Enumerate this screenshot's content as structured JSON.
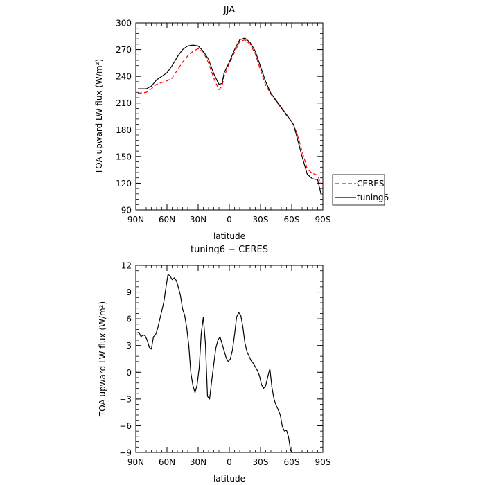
{
  "chart_data": [
    {
      "type": "line",
      "title": "JJA",
      "xlabel": "latitude",
      "ylabel": "TOA upward LW flux (W/m²)",
      "xlim": [
        90,
        -90
      ],
      "ylim": [
        90,
        300
      ],
      "xticks": [
        90,
        60,
        30,
        0,
        -30,
        -60,
        -90
      ],
      "xtick_labels": [
        "90N",
        "60N",
        "30N",
        "0",
        "30S",
        "60S",
        "90S"
      ],
      "yticks": [
        90,
        120,
        150,
        180,
        210,
        240,
        270,
        300
      ],
      "ytick_labels": [
        "90",
        "120",
        "150",
        "180",
        "210",
        "240",
        "270",
        "300"
      ],
      "legend": {
        "placement": "outside-right"
      },
      "series": [
        {
          "name": "CERES",
          "color": "#ff0000",
          "dash": true,
          "x": [
            88,
            80,
            75,
            70,
            65,
            60,
            55,
            50,
            45,
            40,
            35,
            30,
            25,
            20,
            15,
            10,
            7,
            5,
            0,
            -5,
            -10,
            -15,
            -20,
            -25,
            -30,
            -35,
            -40,
            -45,
            -50,
            -55,
            -60,
            -62,
            -65,
            -70,
            -75,
            -80,
            -85,
            -88
          ],
          "y": [
            221,
            222,
            226,
            231,
            233,
            235,
            238,
            247,
            256,
            263,
            268,
            271,
            267,
            255,
            238,
            225,
            229,
            240,
            254,
            267,
            279,
            281,
            276,
            265,
            247,
            230,
            220,
            212,
            204,
            196,
            189,
            185,
            176,
            156,
            136,
            131,
            129,
            119
          ]
        },
        {
          "name": "tuning6",
          "color": "#000000",
          "dash": false,
          "x": [
            88,
            80,
            75,
            70,
            65,
            60,
            55,
            50,
            45,
            40,
            35,
            30,
            25,
            20,
            15,
            10,
            7,
            5,
            0,
            -5,
            -10,
            -15,
            -20,
            -25,
            -30,
            -35,
            -40,
            -45,
            -50,
            -55,
            -60,
            -62,
            -65,
            -70,
            -75,
            -80,
            -85,
            -88
          ],
          "y": [
            226,
            226,
            229,
            236,
            240,
            244,
            252,
            262,
            270,
            274,
            275,
            274,
            268,
            259,
            243,
            231,
            232,
            244,
            256,
            270,
            281,
            283,
            278,
            268,
            251,
            234,
            221,
            213,
            205,
            197,
            189,
            185,
            172,
            150,
            130,
            125,
            124,
            109
          ]
        }
      ]
    },
    {
      "type": "line",
      "title": "tuning6 − CERES",
      "xlabel": "latitude",
      "ylabel": "TOA upward LW flux (W/m²)",
      "xlim": [
        90,
        -90
      ],
      "ylim": [
        -9,
        12
      ],
      "xticks": [
        90,
        60,
        30,
        0,
        -30,
        -60,
        -90
      ],
      "xtick_labels": [
        "90N",
        "60N",
        "30N",
        "0",
        "30S",
        "60S",
        "90S"
      ],
      "yticks": [
        -9,
        -6,
        -3,
        0,
        3,
        6,
        9,
        12
      ],
      "ytick_labels": [
        "−9",
        "−6",
        "−3",
        "0",
        "3",
        "6",
        "9",
        "12"
      ],
      "series": [
        {
          "color": "#000000",
          "dash": false,
          "x": [
            89,
            87,
            85,
            83,
            81,
            79,
            77,
            75,
            73,
            71,
            69,
            67,
            65,
            63,
            61,
            59,
            57,
            55,
            53,
            51,
            49,
            47,
            45,
            43,
            41,
            39,
            37,
            35,
            33,
            31,
            29,
            27,
            25,
            23,
            21,
            19,
            17,
            15,
            13,
            11,
            9,
            7,
            5,
            3,
            1,
            -1,
            -3,
            -5,
            -7,
            -9,
            -11,
            -13,
            -15,
            -17,
            -19,
            -21,
            -23,
            -25,
            -27,
            -29,
            -31,
            -33,
            -35,
            -37,
            -39,
            -41,
            -43,
            -45,
            -47,
            -49,
            -51,
            -53,
            -55,
            -57,
            -59,
            -61,
            -63,
            -65,
            -67,
            -69,
            -71,
            -73,
            -75,
            -77,
            -79,
            -81,
            -83,
            -85,
            -87,
            -89
          ],
          "y": [
            4.4,
            4.5,
            4.0,
            4.2,
            4.1,
            3.6,
            2.8,
            2.6,
            4.0,
            4.2,
            4.9,
            5.9,
            6.9,
            7.9,
            9.5,
            11.0,
            10.8,
            10.4,
            10.6,
            10.3,
            9.5,
            8.6,
            7.1,
            6.4,
            5.0,
            3.0,
            -0.1,
            -1.5,
            -2.3,
            -1.4,
            0.5,
            4.4,
            6.2,
            3.2,
            -2.7,
            -3.0,
            -1.0,
            0.9,
            2.7,
            3.6,
            4.0,
            3.2,
            2.4,
            1.6,
            1.2,
            1.5,
            2.5,
            4.2,
            6.2,
            6.7,
            6.4,
            5.1,
            3.3,
            2.3,
            1.8,
            1.3,
            1.0,
            0.6,
            0.2,
            -0.4,
            -1.4,
            -1.8,
            -1.5,
            -0.5,
            0.4,
            -1.7,
            -3.0,
            -3.7,
            -4.2,
            -4.8,
            -6.1,
            -6.6,
            -6.5,
            -7.3,
            -8.8,
            -9.0,
            -9.0,
            -9.0,
            -9.0,
            -9.0,
            -9.0,
            -9.0,
            -9.0,
            -9.0,
            -9.0,
            -9.0,
            -9.0,
            -9.0,
            -9.0,
            -9.0
          ]
        }
      ]
    }
  ]
}
